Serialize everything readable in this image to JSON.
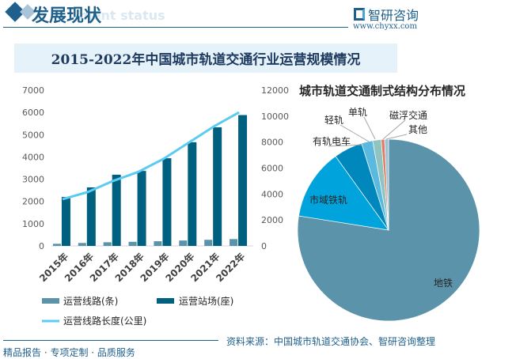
{
  "header": {
    "title": "发展现状",
    "subtitle_en": "ment status",
    "logo": "智研咨询",
    "url": "www.chyxx.com"
  },
  "banner": {
    "title": "2015-2022年中国城市轨道交通行业运营规模情况"
  },
  "footer": {
    "slogan": "精品报告 · 专项定制 · 品质服务",
    "source": "资料来源：中国城市轨道交通协会、智研咨询整理"
  },
  "colors": {
    "lines": "#5b93aa",
    "stations": "#00607f",
    "length": "#5ccbf2",
    "brand": "#1f5f8b"
  },
  "chart_data": [
    {
      "type": "bar",
      "categories": [
        "2015年",
        "2016年",
        "2017年",
        "2018年",
        "2019年",
        "2020年",
        "2021年",
        "2022年"
      ],
      "ylim": [
        0,
        7000
      ],
      "yticks": [
        0,
        1000,
        2000,
        3000,
        4000,
        5000,
        6000,
        7000
      ],
      "y2lim": [
        0,
        12000
      ],
      "y2ticks": [
        0,
        2000,
        4000,
        6000,
        8000,
        10000,
        12000
      ],
      "series": [
        {
          "name": "运营线路(条)",
          "type": "bar",
          "axis": "left",
          "values": [
            96,
            133,
            165,
            185,
            211,
            244,
            275,
            308
          ]
        },
        {
          "name": "运营站场(座)",
          "type": "bar",
          "axis": "left",
          "values": [
            2200,
            2630,
            3200,
            3370,
            3940,
            4660,
            5330,
            5880
          ]
        },
        {
          "name": "运营线路长度(公里)",
          "type": "line",
          "axis": "right",
          "values": [
            3600,
            4150,
            5000,
            5700,
            6700,
            7950,
            9200,
            10290
          ]
        }
      ],
      "legend": "bottom"
    },
    {
      "type": "pie",
      "title": "城市轨道交通制式结构分布情况",
      "slices": [
        {
          "label": "地铁",
          "value": 77.5,
          "color": "#5b93aa"
        },
        {
          "label": "市域铁轨",
          "value": 12.6,
          "color": "#00a3dc"
        },
        {
          "label": "有轨电车",
          "value": 5.1,
          "color": "#0088bd"
        },
        {
          "label": "轻轨",
          "value": 2.0,
          "color": "#5bb8de"
        },
        {
          "label": "单轨",
          "value": 1.5,
          "color": "#8fc4c0"
        },
        {
          "label": "磁浮交通",
          "value": 0.6,
          "color": "#e07a60"
        },
        {
          "label": "其他",
          "value": 0.7,
          "color": "#9fc1d4"
        }
      ]
    }
  ]
}
